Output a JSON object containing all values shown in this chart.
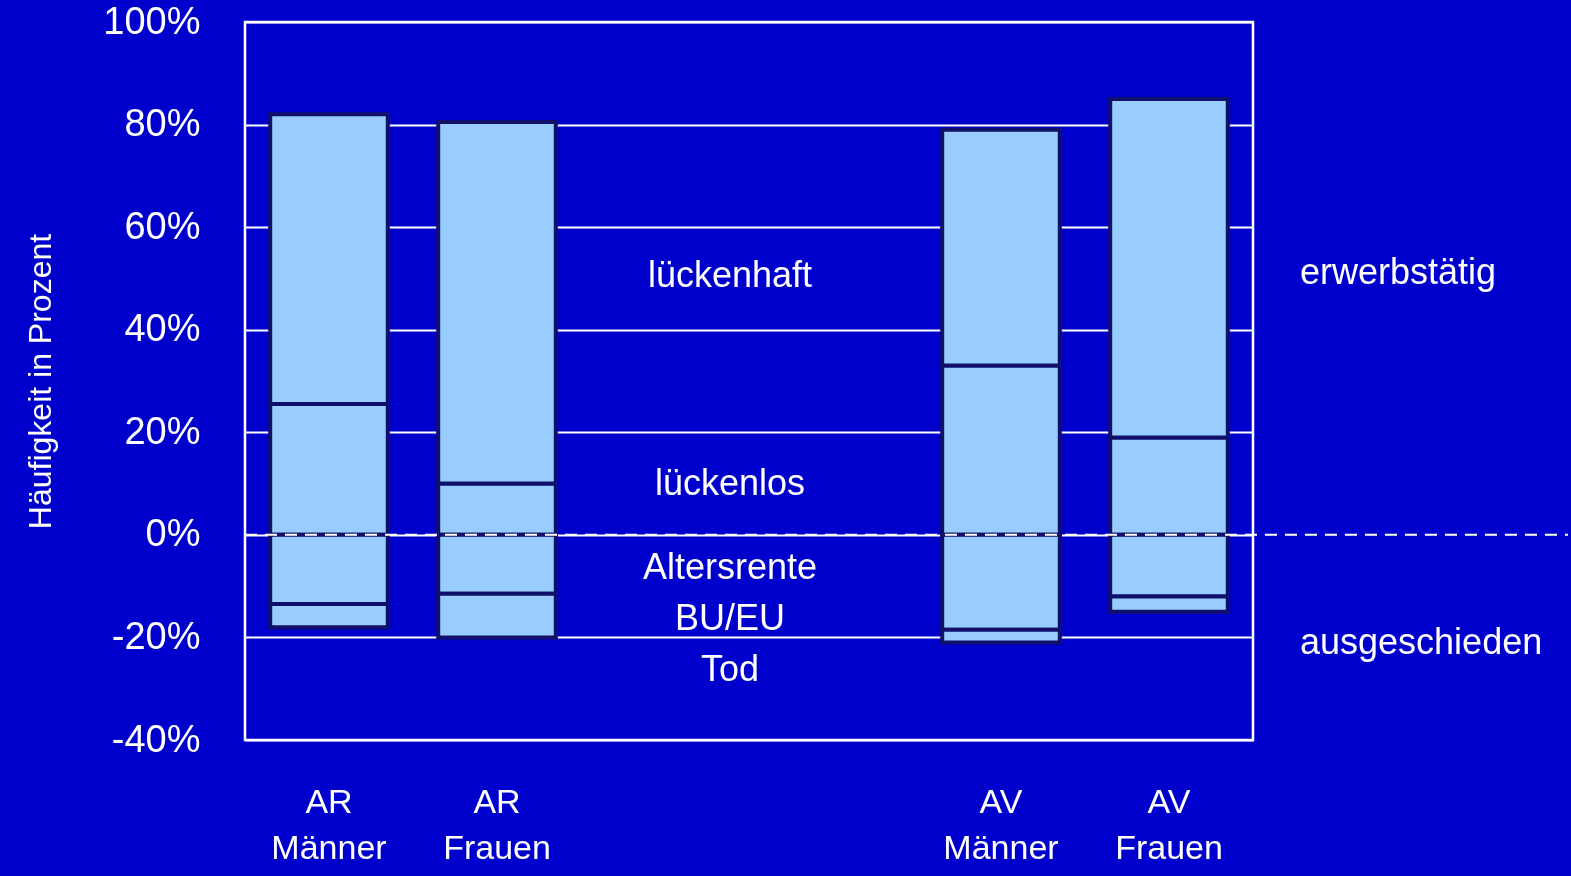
{
  "chart_data": {
    "type": "bar",
    "stacked": true,
    "ylabel": "Häufigkeit in Prozent",
    "categories": [
      "AR Männer",
      "AR Frauen",
      null,
      null,
      "AV Männer",
      "AV Frauen"
    ],
    "series": [
      {
        "color": "#99ccff",
        "values": [
          25.5,
          10,
          null,
          null,
          33,
          19
        ]
      },
      {
        "color": "#99ccff",
        "values": [
          56.5,
          70.5,
          null,
          null,
          46,
          66
        ]
      },
      {
        "color": "#99ccff",
        "values": [
          -13.5,
          -11.5,
          null,
          null,
          -18.5,
          -12
        ]
      },
      {
        "color": "#99ccff",
        "values": [
          -4.5,
          -8.5,
          null,
          null,
          -2.5,
          -3
        ]
      }
    ],
    "ylim": [
      -40,
      100
    ],
    "yticks": [
      {
        "value": -40,
        "label": "-40%"
      },
      {
        "value": -20,
        "label": "-20%"
      },
      {
        "value": 0,
        "label": "0%"
      },
      {
        "value": 20,
        "label": "20%"
      },
      {
        "value": 40,
        "label": "40%"
      },
      {
        "value": 60,
        "label": "60%"
      },
      {
        "value": 80,
        "label": "80%"
      },
      {
        "value": 100,
        "label": "100%"
      }
    ],
    "grid": "y",
    "ref_lines": [
      {
        "axis": "y",
        "value": 0,
        "line_style": "dashed",
        "color": "#ffffff"
      }
    ],
    "annotations": [
      "lückenhaft",
      "lückenlos",
      "Altersrente",
      "BU/EU",
      "Tod",
      "erwerbstätig",
      "ausgeschieden"
    ]
  }
}
